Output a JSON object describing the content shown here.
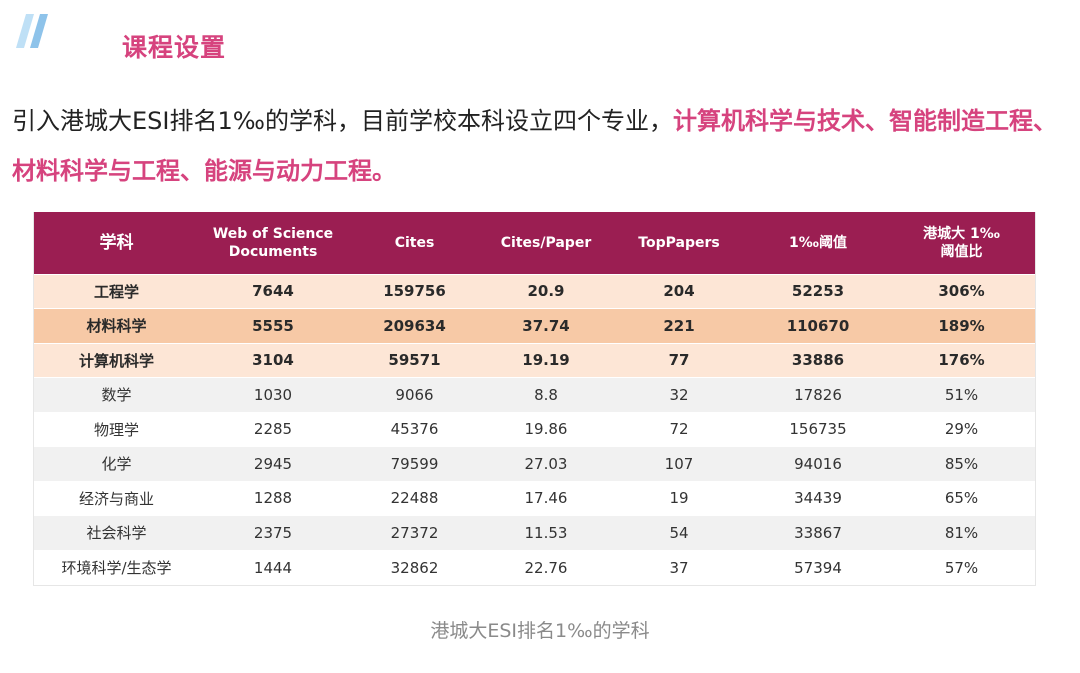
{
  "section_title": "课程设置",
  "intro": {
    "plain": "引入港城大ESI排名1‰的学科，目前学校本科设立四个专业，",
    "highlight": "计算机科学与技术、智能制造工程、材料科学与工程、能源与动力工程。"
  },
  "table": {
    "headers": {
      "subject": "学科",
      "documents": "Web of Science Documents",
      "cites": "Cites",
      "cites_per_paper": "Cites/Paper",
      "top_papers": "TopPapers",
      "threshold": "1‰阈值",
      "ratio": "港城大 1‰ 阈值比"
    },
    "rows": [
      {
        "subject": "工程学",
        "documents": "7644",
        "cites": "159756",
        "cites_per_paper": "20.9",
        "top_papers": "204",
        "threshold": "52253",
        "ratio": "306%"
      },
      {
        "subject": "材料科学",
        "documents": "5555",
        "cites": "209634",
        "cites_per_paper": "37.74",
        "top_papers": "221",
        "threshold": "110670",
        "ratio": "189%"
      },
      {
        "subject": "计算机科学",
        "documents": "3104",
        "cites": "59571",
        "cites_per_paper": "19.19",
        "top_papers": "77",
        "threshold": "33886",
        "ratio": "176%"
      },
      {
        "subject": "数学",
        "documents": "1030",
        "cites": "9066",
        "cites_per_paper": "8.8",
        "top_papers": "32",
        "threshold": "17826",
        "ratio": "51%"
      },
      {
        "subject": "物理学",
        "documents": "2285",
        "cites": "45376",
        "cites_per_paper": "19.86",
        "top_papers": "72",
        "threshold": "156735",
        "ratio": "29%"
      },
      {
        "subject": "化学",
        "documents": "2945",
        "cites": "79599",
        "cites_per_paper": "27.03",
        "top_papers": "107",
        "threshold": "94016",
        "ratio": "85%"
      },
      {
        "subject": "经济与商业",
        "documents": "1288",
        "cites": "22488",
        "cites_per_paper": "17.46",
        "top_papers": "19",
        "threshold": "34439",
        "ratio": "65%"
      },
      {
        "subject": "社会科学",
        "documents": "2375",
        "cites": "27372",
        "cites_per_paper": "11.53",
        "top_papers": "54",
        "threshold": "33867",
        "ratio": "81%"
      },
      {
        "subject": "环境科学/生态学",
        "documents": "1444",
        "cites": "32862",
        "cites_per_paper": "22.76",
        "top_papers": "37",
        "threshold": "57394",
        "ratio": "57%"
      }
    ]
  },
  "caption": "港城大ESI排名1‰的学科",
  "colors": {
    "accent": "#d6437e",
    "header_bg": "#9b1e52",
    "deco_blue": "#8ec3ea"
  }
}
